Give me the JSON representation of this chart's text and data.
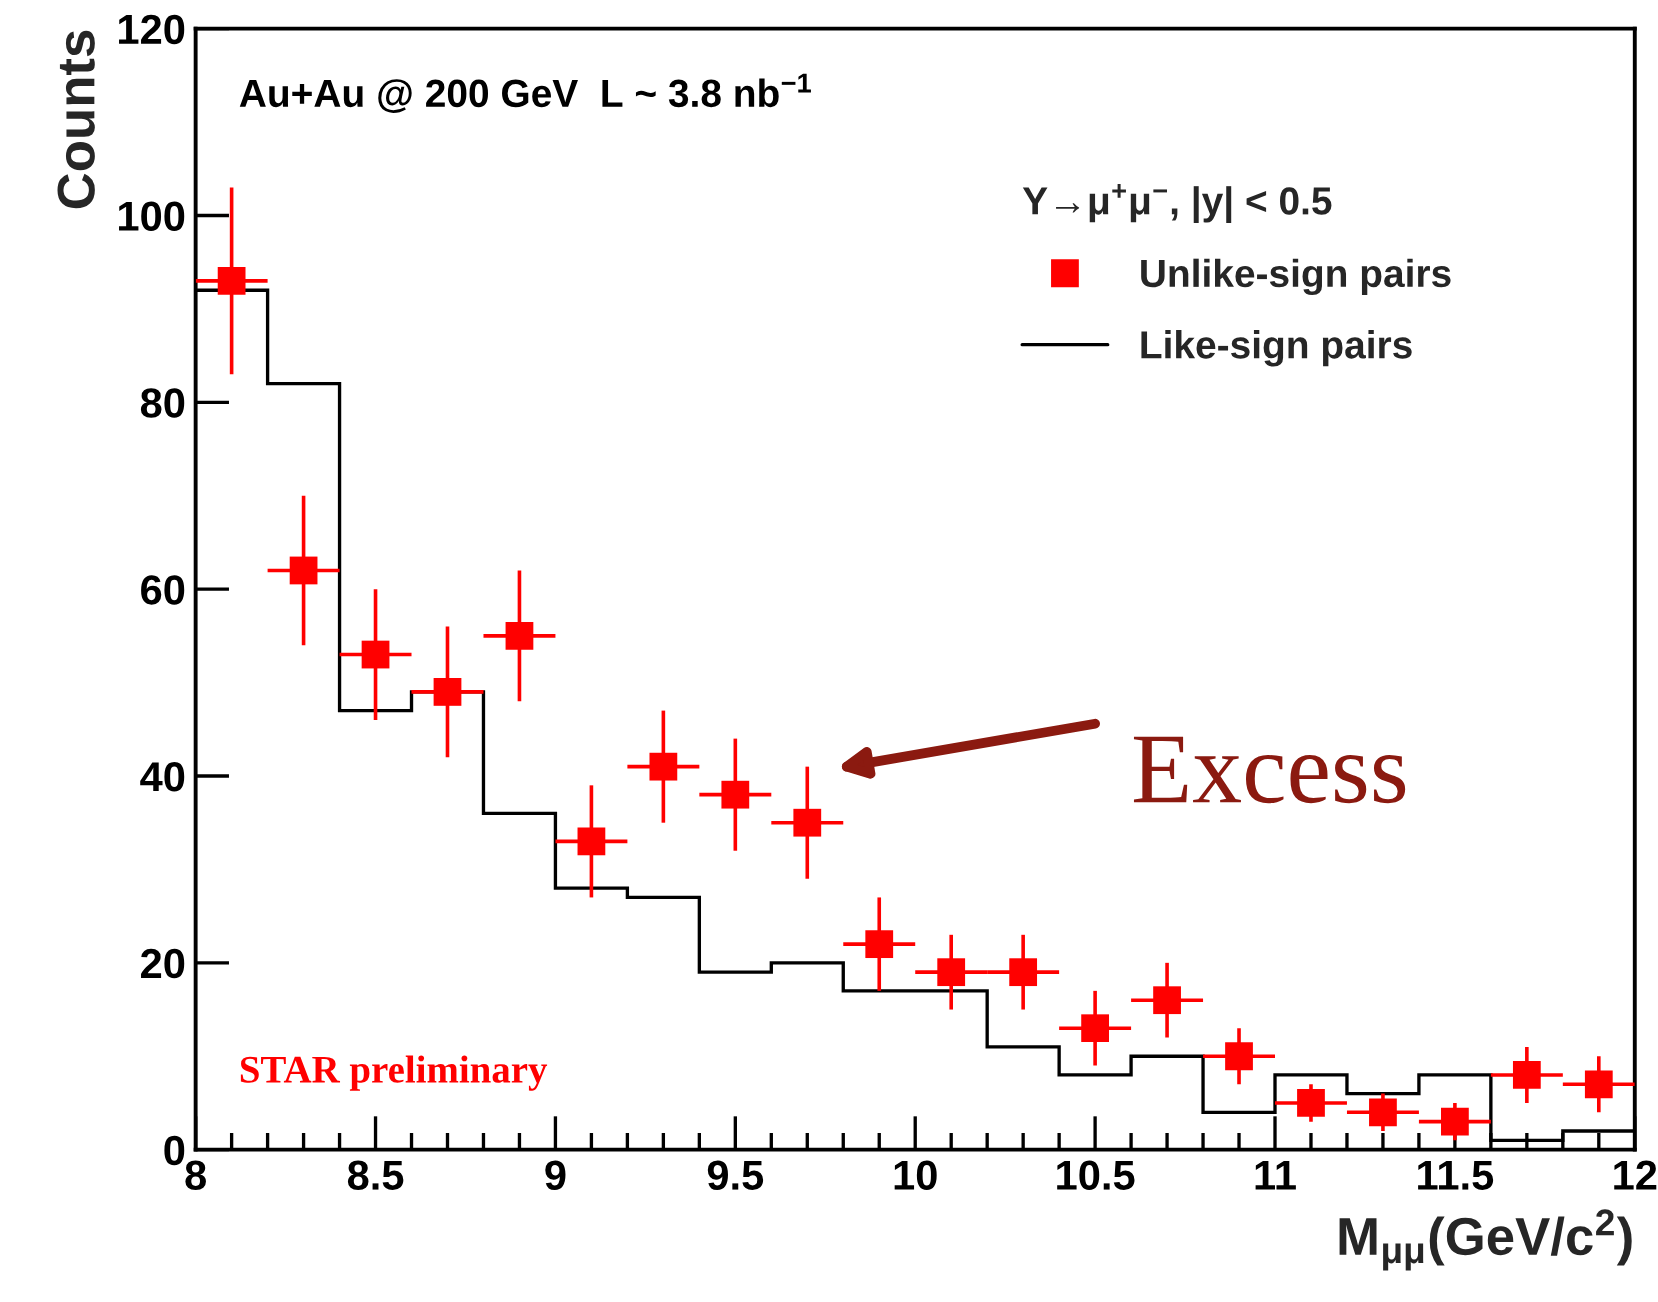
{
  "chart_data": {
    "type": "scatter",
    "xlabel": "M$_{μμ}$(GeV/c$^{2}$)",
    "ylabel": "Counts",
    "legend_title": "Υ→μ$^{+}$μ$^{−}$, |y| < 0.5",
    "annotations": [
      "Au+Au @ 200 GeV  L ~ 3.8 nb$^{−1}$",
      "STAR preliminary",
      "Excess"
    ],
    "series": [
      {
        "name": "Unlike-sign pairs",
        "color": "#ff0000",
        "marker": "square",
        "x": [
          8.1,
          8.3,
          8.5,
          8.7,
          8.9,
          9.1,
          9.3,
          9.5,
          9.7,
          9.9,
          10.1,
          10.3,
          10.5,
          10.7,
          10.9,
          11.1,
          11.3,
          11.5,
          11.7,
          11.9
        ],
        "values": [
          93,
          62,
          53,
          49,
          55,
          33,
          41,
          38,
          35,
          22,
          19,
          19,
          13,
          16,
          10,
          5,
          4,
          3,
          8,
          7
        ],
        "errors": [
          10,
          8,
          7,
          7,
          7,
          6,
          6,
          6,
          6,
          5,
          4,
          4,
          4,
          4,
          3,
          2,
          2,
          2,
          3,
          3
        ],
        "xerrors": [
          0.1,
          0.1,
          0.1,
          0.1,
          0.1,
          0.1,
          0.1,
          0.1,
          0.1,
          0.1,
          0.1,
          0.1,
          0.1,
          0.1,
          0.1,
          0.1,
          0.1,
          0.1,
          0.1,
          0.1
        ]
      },
      {
        "name": "Like-sign pairs",
        "type": "histogram",
        "color": "#000000",
        "bins": [
          8.0,
          8.2,
          8.4,
          8.6,
          8.8,
          9.0,
          9.2,
          9.4,
          9.6,
          9.8,
          10.0,
          10.2,
          10.4,
          10.6,
          10.8,
          11.0,
          11.2,
          11.4,
          11.6,
          11.8,
          12.0
        ],
        "values": [
          92,
          82,
          47,
          49,
          36,
          28,
          27,
          19,
          20,
          17,
          17,
          11,
          8,
          10,
          4,
          8,
          6,
          8,
          1,
          2
        ]
      }
    ],
    "xlim": [
      8,
      12
    ],
    "ylim": [
      0,
      120
    ],
    "xticks": [
      8,
      8.5,
      9,
      9.5,
      10,
      10.5,
      11,
      11.5,
      12
    ],
    "yticks": [
      0,
      20,
      40,
      60,
      80,
      100,
      120
    ],
    "grid": false,
    "legend": "right"
  }
}
